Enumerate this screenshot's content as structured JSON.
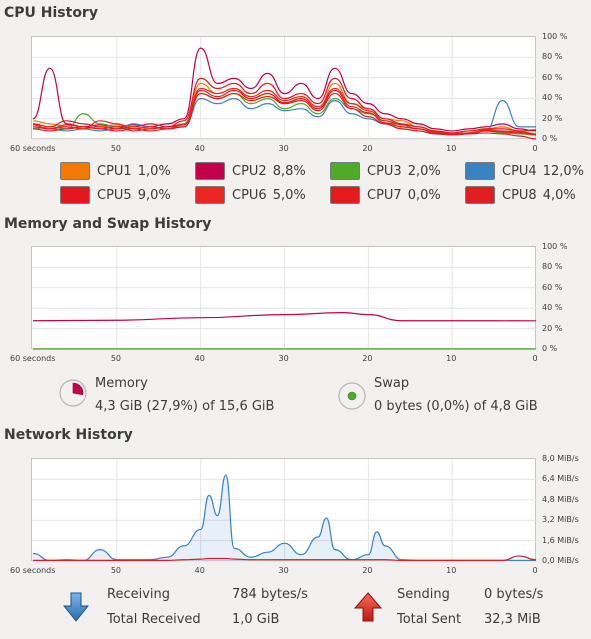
{
  "cpu": {
    "title": "CPU History",
    "y_ticks": [
      "100 %",
      "80 %",
      "60 %",
      "40 %",
      "20 %",
      "0 %"
    ],
    "x_ticks": [
      "60 seconds",
      "50",
      "40",
      "30",
      "20",
      "10",
      "0"
    ],
    "legend": [
      {
        "name": "CPU1",
        "value": "1,0%",
        "color": "#f57900"
      },
      {
        "name": "CPU2",
        "value": "8,8%",
        "color": "#c4004a"
      },
      {
        "name": "CPU3",
        "value": "2,0%",
        "color": "#4eaa2a"
      },
      {
        "name": "CPU4",
        "value": "12,0%",
        "color": "#3883c4"
      },
      {
        "name": "CPU5",
        "value": "9,0%",
        "color": "#e4171c"
      },
      {
        "name": "CPU6",
        "value": "5,0%",
        "color": "#ec2422"
      },
      {
        "name": "CPU7",
        "value": "0,0%",
        "color": "#e51a1c"
      },
      {
        "name": "CPU8",
        "value": "4,0%",
        "color": "#e11f1f"
      }
    ]
  },
  "memory": {
    "title": "Memory and Swap History",
    "y_ticks": [
      "100 %",
      "80 %",
      "60 %",
      "40 %",
      "20 %",
      "0 %"
    ],
    "x_ticks": [
      "60 seconds",
      "50",
      "40",
      "30",
      "20",
      "10",
      "0"
    ],
    "memory_label": "Memory",
    "memory_value": "4,3 GiB (27,9%) of 15,6 GiB",
    "memory_color": "#c4004a",
    "memory_fraction": 0.279,
    "swap_label": "Swap",
    "swap_value": "0 bytes (0,0%) of 4,8 GiB",
    "swap_color": "#4eaa2a",
    "swap_fraction": 0.0
  },
  "network": {
    "title": "Network History",
    "y_ticks": [
      "8,0 MiB/s",
      "6,4 MiB/s",
      "4,8 MiB/s",
      "3,2 MiB/s",
      "1,6 MiB/s",
      "0,0 MiB/s"
    ],
    "x_ticks": [
      "60 seconds",
      "50",
      "40",
      "30",
      "20",
      "10",
      "0"
    ],
    "receiving_label": "Receiving",
    "receiving_value": "784 bytes/s",
    "total_received_label": "Total Received",
    "total_received_value": "1,0 GiB",
    "sending_label": "Sending",
    "sending_value": "0 bytes/s",
    "total_sent_label": "Total Sent",
    "total_sent_value": "32,3 MiB",
    "receive_color": "#3883c4",
    "send_color": "#e4171c"
  },
  "chart_data": [
    {
      "type": "line",
      "title": "CPU History",
      "x": [
        60,
        58,
        56,
        54,
        52,
        50,
        48,
        46,
        44,
        42,
        40,
        38,
        36,
        34,
        32,
        30,
        28,
        26,
        24,
        22,
        20,
        18,
        16,
        14,
        12,
        10,
        8,
        6,
        4,
        2,
        0
      ],
      "ylim": [
        0,
        100
      ],
      "series": [
        {
          "name": "CPU1",
          "values": [
            18,
            15,
            12,
            10,
            12,
            14,
            12,
            10,
            12,
            15,
            55,
            45,
            50,
            40,
            45,
            35,
            40,
            30,
            55,
            35,
            30,
            20,
            18,
            12,
            8,
            6,
            8,
            10,
            12,
            8,
            5
          ]
        },
        {
          "name": "CPU2",
          "values": [
            20,
            70,
            15,
            12,
            14,
            12,
            14,
            12,
            15,
            20,
            90,
            55,
            60,
            50,
            65,
            45,
            55,
            40,
            70,
            45,
            35,
            25,
            20,
            15,
            10,
            8,
            10,
            12,
            15,
            10,
            8
          ]
        },
        {
          "name": "CPU3",
          "values": [
            10,
            12,
            10,
            25,
            15,
            12,
            10,
            12,
            10,
            15,
            45,
            40,
            45,
            35,
            40,
            30,
            35,
            25,
            40,
            30,
            25,
            18,
            12,
            10,
            6,
            5,
            6,
            8,
            6,
            5,
            4
          ]
        },
        {
          "name": "CPU4",
          "values": [
            12,
            10,
            8,
            10,
            8,
            10,
            15,
            12,
            10,
            12,
            40,
            35,
            40,
            30,
            35,
            28,
            30,
            22,
            38,
            25,
            20,
            15,
            10,
            8,
            5,
            4,
            5,
            8,
            38,
            12,
            12
          ]
        },
        {
          "name": "CPU5",
          "values": [
            15,
            12,
            18,
            15,
            12,
            10,
            12,
            15,
            12,
            18,
            60,
            50,
            55,
            45,
            55,
            40,
            45,
            35,
            60,
            40,
            30,
            20,
            15,
            12,
            8,
            6,
            8,
            10,
            10,
            8,
            9
          ]
        },
        {
          "name": "CPU6",
          "values": [
            14,
            10,
            12,
            10,
            18,
            15,
            10,
            12,
            10,
            14,
            50,
            45,
            50,
            42,
            48,
            38,
            42,
            32,
            50,
            35,
            28,
            18,
            14,
            10,
            7,
            5,
            6,
            9,
            8,
            7,
            5
          ]
        },
        {
          "name": "CPU7",
          "values": [
            10,
            8,
            10,
            12,
            10,
            8,
            10,
            8,
            10,
            12,
            45,
            40,
            45,
            38,
            42,
            35,
            38,
            28,
            45,
            30,
            22,
            15,
            10,
            8,
            5,
            4,
            5,
            6,
            5,
            3,
            0
          ]
        },
        {
          "name": "CPU8",
          "values": [
            12,
            10,
            14,
            12,
            10,
            12,
            8,
            10,
            12,
            14,
            48,
            42,
            48,
            40,
            45,
            36,
            40,
            30,
            48,
            32,
            26,
            16,
            12,
            10,
            6,
            5,
            6,
            8,
            7,
            6,
            4
          ]
        }
      ]
    },
    {
      "type": "line",
      "title": "Memory and Swap History",
      "x": [
        60,
        50,
        40,
        30,
        23,
        20,
        16,
        10,
        0
      ],
      "ylim": [
        0,
        100
      ],
      "series": [
        {
          "name": "Memory",
          "values": [
            28,
            28.5,
            31,
            34,
            36,
            34,
            28,
            28,
            27.9
          ]
        },
        {
          "name": "Swap",
          "values": [
            0,
            0,
            0,
            0,
            0,
            0,
            0,
            0,
            0
          ]
        }
      ]
    },
    {
      "type": "line",
      "title": "Network History",
      "x": [
        60,
        58,
        56,
        54,
        52,
        50,
        48,
        46,
        44,
        42,
        40,
        39,
        38,
        37,
        36,
        34,
        32,
        30,
        28,
        26,
        25,
        24,
        22,
        20,
        19,
        18,
        16,
        14,
        12,
        10,
        8,
        6,
        4,
        2,
        0
      ],
      "ylim": [
        0,
        8.0
      ],
      "series": [
        {
          "name": "Receiving",
          "values": [
            0.6,
            0.05,
            0.1,
            0.05,
            0.9,
            0.1,
            0.1,
            0.1,
            0.3,
            1.2,
            2.5,
            5.2,
            3.6,
            6.8,
            1.0,
            0.3,
            0.7,
            1.4,
            0.5,
            1.9,
            3.4,
            0.9,
            0.1,
            0.5,
            2.3,
            1.2,
            0.1,
            0.05,
            0.05,
            0.05,
            0.05,
            0.05,
            0.05,
            0.05,
            0.05
          ]
        },
        {
          "name": "Sending",
          "values": [
            0.05,
            0.05,
            0.05,
            0.05,
            0.05,
            0.05,
            0.05,
            0.05,
            0.05,
            0.1,
            0.15,
            0.2,
            0.2,
            0.2,
            0.15,
            0.1,
            0.1,
            0.1,
            0.1,
            0.1,
            0.1,
            0.1,
            0.1,
            0.1,
            0.1,
            0.1,
            0.05,
            0.05,
            0.05,
            0.05,
            0.05,
            0.05,
            0.05,
            0.4,
            0.1
          ]
        }
      ]
    }
  ]
}
